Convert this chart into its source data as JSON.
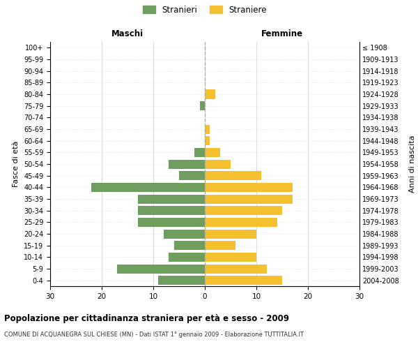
{
  "age_groups": [
    "0-4",
    "5-9",
    "10-14",
    "15-19",
    "20-24",
    "25-29",
    "30-34",
    "35-39",
    "40-44",
    "45-49",
    "50-54",
    "55-59",
    "60-64",
    "65-69",
    "70-74",
    "75-79",
    "80-84",
    "85-89",
    "90-94",
    "95-99",
    "100+"
  ],
  "birth_years": [
    "2004-2008",
    "1999-2003",
    "1994-1998",
    "1989-1993",
    "1984-1988",
    "1979-1983",
    "1974-1978",
    "1969-1973",
    "1964-1968",
    "1959-1963",
    "1954-1958",
    "1949-1953",
    "1944-1948",
    "1939-1943",
    "1934-1938",
    "1929-1933",
    "1924-1928",
    "1919-1923",
    "1914-1918",
    "1909-1913",
    "≤ 1908"
  ],
  "maschi": [
    9,
    17,
    7,
    6,
    8,
    13,
    13,
    13,
    22,
    5,
    7,
    2,
    0,
    0,
    0,
    1,
    0,
    0,
    0,
    0,
    0
  ],
  "femmine": [
    15,
    12,
    10,
    6,
    10,
    14,
    15,
    17,
    17,
    11,
    5,
    3,
    1,
    1,
    0,
    0,
    2,
    0,
    0,
    0,
    0
  ],
  "maschi_color": "#6d9e5e",
  "femmine_color": "#f5c030",
  "title": "Popolazione per cittadinanza straniera per età e sesso - 2009",
  "subtitle": "COMUNE DI ACQUANEGRA SUL CHIESE (MN) - Dati ISTAT 1° gennaio 2009 - Elaborazione TUTTITALIA.IT",
  "ylabel_left": "Fasce di età",
  "ylabel_right": "Anni di nascita",
  "xlabel_left": "Maschi",
  "xlabel_right": "Femmine",
  "legend_stranieri": "Stranieri",
  "legend_straniere": "Straniere",
  "xlim": 30,
  "background_color": "#ffffff",
  "grid_color": "#cccccc",
  "grid_color_y": "#dddddd",
  "dashed_line_color": "#aaaaaa"
}
